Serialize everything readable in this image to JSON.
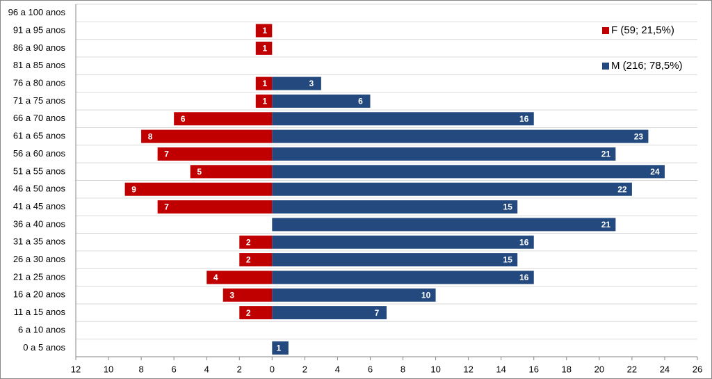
{
  "chart_data": {
    "type": "pyramid",
    "categories": [
      "96 a 100 anos",
      "91 a 95 anos",
      "86 a 90 anos",
      "81 a 85 anos",
      "76 a 80 anos",
      "71 a 75 anos",
      "66 a 70 anos",
      "61 a 65 anos",
      "56 a 60 anos",
      "51 a 55 anos",
      "46 a 50 anos",
      "41 a 45 anos",
      "36 a 40 anos",
      "31 a 35 anos",
      "26 a 30 anos",
      "21 a 25 anos",
      "16 a 20 anos",
      "11 a 15 anos",
      "6 a 10 anos",
      "0 a 5 anos"
    ],
    "series": [
      {
        "name": "F (59; 21,5%)",
        "color": "#c00000",
        "values": [
          null,
          -1,
          -1,
          null,
          -1,
          -1,
          -6,
          -8,
          -7,
          -5,
          -9,
          -7,
          null,
          -2,
          -2,
          -4,
          -3,
          -2,
          null,
          null
        ],
        "value_labels": [
          null,
          "1",
          "1",
          null,
          "1",
          "1",
          "6",
          "8",
          "7",
          "5",
          "9",
          "7",
          null,
          "2",
          "2",
          "4",
          "3",
          "2",
          null,
          null
        ]
      },
      {
        "name": "M (216; 78,5%)",
        "color": "#23497f",
        "values": [
          null,
          null,
          null,
          null,
          3,
          6,
          16,
          23,
          21,
          24,
          22,
          15,
          21,
          16,
          15,
          16,
          10,
          7,
          null,
          1
        ]
      }
    ],
    "xlim": [
      -12,
      26
    ],
    "xticks": [
      {
        "value": -12,
        "label": "12"
      },
      {
        "value": -10,
        "label": "10"
      },
      {
        "value": -8,
        "label": "8"
      },
      {
        "value": -6,
        "label": "6"
      },
      {
        "value": -4,
        "label": "4"
      },
      {
        "value": -2,
        "label": "2"
      },
      0,
      2,
      4,
      6,
      8,
      10,
      12,
      14,
      16,
      18,
      20,
      22,
      24,
      26
    ],
    "grid": true,
    "legend": "top-right"
  }
}
